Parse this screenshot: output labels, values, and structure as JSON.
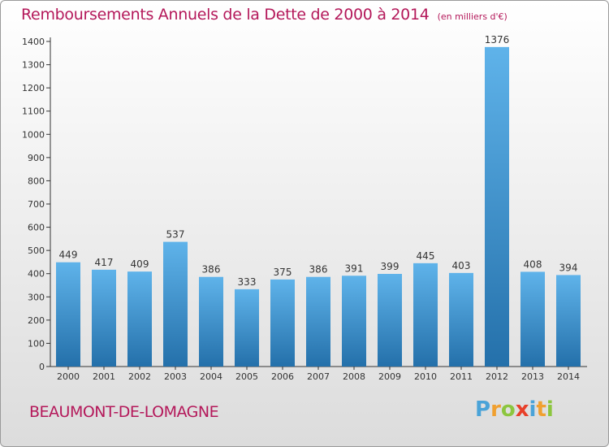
{
  "header": {
    "title": "Remboursements Annuels de la Dette de 2000 à 2014",
    "unit": "(en milliers d'€)"
  },
  "footer": {
    "commune": "BEAUMONT-DE-LOMAGNE",
    "logo": [
      "P",
      "r",
      "o",
      "x",
      "i",
      "t",
      "i"
    ]
  },
  "colors": {
    "bar_light": "#5fb3ea",
    "bar_dark": "#2470aa",
    "title": "#b4185a"
  },
  "chart_data": {
    "type": "bar",
    "title": "Remboursements Annuels de la Dette de 2000 à 2014",
    "subtitle": "(en milliers d'€)",
    "xlabel": "",
    "ylabel": "",
    "categories": [
      "2000",
      "2001",
      "2002",
      "2003",
      "2004",
      "2005",
      "2006",
      "2007",
      "2008",
      "2009",
      "2010",
      "2011",
      "2012",
      "2013",
      "2014"
    ],
    "values": [
      449,
      417,
      409,
      537,
      386,
      333,
      375,
      386,
      391,
      399,
      445,
      403,
      1376,
      408,
      394
    ],
    "ylim": [
      0,
      1400
    ],
    "yticks": [
      0,
      100,
      200,
      300,
      400,
      500,
      600,
      700,
      800,
      900,
      1000,
      1100,
      1200,
      1300,
      1400
    ],
    "grid": false,
    "legend": "none"
  }
}
